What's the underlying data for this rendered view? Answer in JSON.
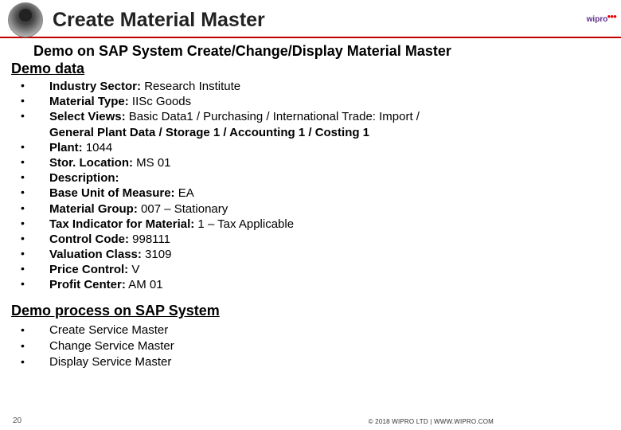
{
  "header": {
    "title": "Create Material Master",
    "right_logo_text": "wipro"
  },
  "demo": {
    "title": "Demo on SAP System Create/Change/Display Material Master",
    "data_heading": "Demo data",
    "items": [
      {
        "label": "Industry Sector:",
        "value": " Research Institute"
      },
      {
        "label": "Material Type:",
        "value": " IISc Goods"
      },
      {
        "label": "Select Views:",
        "value": " Basic Data1 / Purchasing / International Trade: Import /"
      },
      {
        "label": "",
        "value": "General Plant Data / Storage 1 / Accounting 1 / Costing 1",
        "wrap": true
      },
      {
        "label": "Plant:",
        "value": " 1044"
      },
      {
        "label": "Stor. Location:",
        "value": " MS 01"
      },
      {
        "label": "Description:",
        "value": ""
      },
      {
        "label": "Base Unit of Measure:",
        "value": " EA"
      },
      {
        "label": "Material Group:",
        "value": " 007 – Stationary"
      },
      {
        "label": "Tax Indicator for Material:",
        "value": " 1 – Tax Applicable"
      },
      {
        "label": "Control Code:",
        "value": " 998111"
      },
      {
        "label": "Valuation Class:",
        "value": " 3109"
      },
      {
        "label": "Price Control:",
        "value": " V"
      },
      {
        "label": "Profit Center:",
        "value": " AM 01"
      }
    ]
  },
  "process": {
    "heading": "Demo process on SAP System",
    "items": [
      "Create Service Master",
      "Change Service Master",
      "Display Service Master"
    ]
  },
  "footer": {
    "page": "20",
    "copyright": "© 2018 WIPRO LTD | WWW.WIPRO.COM"
  }
}
